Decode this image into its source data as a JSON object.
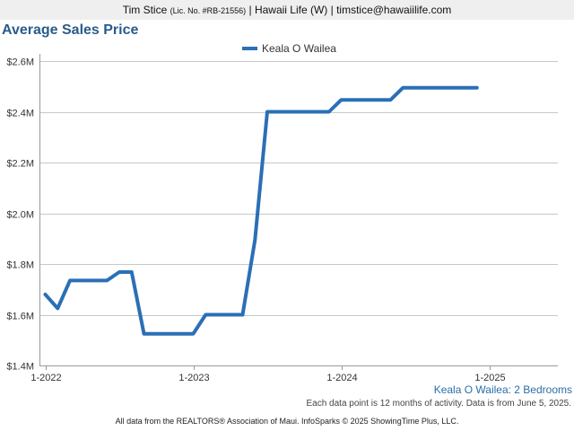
{
  "header": {
    "agent_name": "Tim Stice",
    "license": "(Lic. No. #RB-21556)",
    "agency_contact": "| Hawaii Life (W) | timstice@hawaiilife.com"
  },
  "title": "Average Sales Price",
  "caption": {
    "series_label": "Keala O Wailea: 2 Bedrooms",
    "note": "Each data point is 12 months of activity. Data is from June 5, 2025."
  },
  "footer": "All data from the REALTORS® Association of Maui. InfoSparks © 2025 ShowingTime Plus, LLC.",
  "chart_data": {
    "type": "line",
    "title": "Average Sales Price",
    "legend_position": "top-center",
    "grid": true,
    "x_ticks": [
      "1-2022",
      "1-2023",
      "1-2024",
      "1-2025"
    ],
    "y_ticks": [
      "$1.4M",
      "$1.6M",
      "$1.8M",
      "$2.0M",
      "$2.2M",
      "$2.4M",
      "$2.6M"
    ],
    "ylim": [
      1400000,
      2600000
    ],
    "xlim": [
      "2022-01",
      "2025-05"
    ],
    "series": [
      {
        "name": "Keala O Wailea",
        "color": "#2b6fb6",
        "points": [
          {
            "x": "2022-01",
            "y": 1680000
          },
          {
            "x": "2022-02",
            "y": 1625000
          },
          {
            "x": "2022-03",
            "y": 1735000
          },
          {
            "x": "2022-04",
            "y": 1735000
          },
          {
            "x": "2022-05",
            "y": 1735000
          },
          {
            "x": "2022-06",
            "y": 1735000
          },
          {
            "x": "2022-07",
            "y": 1768000
          },
          {
            "x": "2022-08",
            "y": 1768000
          },
          {
            "x": "2022-09",
            "y": 1525000
          },
          {
            "x": "2022-10",
            "y": 1525000
          },
          {
            "x": "2022-11",
            "y": 1525000
          },
          {
            "x": "2022-12",
            "y": 1525000
          },
          {
            "x": "2023-01",
            "y": 1525000
          },
          {
            "x": "2023-02",
            "y": 1600000
          },
          {
            "x": "2023-03",
            "y": 1600000
          },
          {
            "x": "2023-04",
            "y": 1600000
          },
          {
            "x": "2023-05",
            "y": 1600000
          },
          {
            "x": "2023-06",
            "y": 1895000
          },
          {
            "x": "2023-07",
            "y": 2400000
          },
          {
            "x": "2023-08",
            "y": 2400000
          },
          {
            "x": "2023-09",
            "y": 2400000
          },
          {
            "x": "2023-10",
            "y": 2400000
          },
          {
            "x": "2023-11",
            "y": 2400000
          },
          {
            "x": "2023-12",
            "y": 2400000
          },
          {
            "x": "2024-01",
            "y": 2447000
          },
          {
            "x": "2024-02",
            "y": 2447000
          },
          {
            "x": "2024-03",
            "y": 2447000
          },
          {
            "x": "2024-04",
            "y": 2447000
          },
          {
            "x": "2024-05",
            "y": 2447000
          },
          {
            "x": "2024-06",
            "y": 2495000
          },
          {
            "x": "2024-07",
            "y": 2495000
          },
          {
            "x": "2024-08",
            "y": 2495000
          },
          {
            "x": "2024-09",
            "y": 2495000
          },
          {
            "x": "2024-10",
            "y": 2495000
          },
          {
            "x": "2024-11",
            "y": 2495000
          },
          {
            "x": "2024-12",
            "y": 2495000
          }
        ]
      }
    ]
  }
}
